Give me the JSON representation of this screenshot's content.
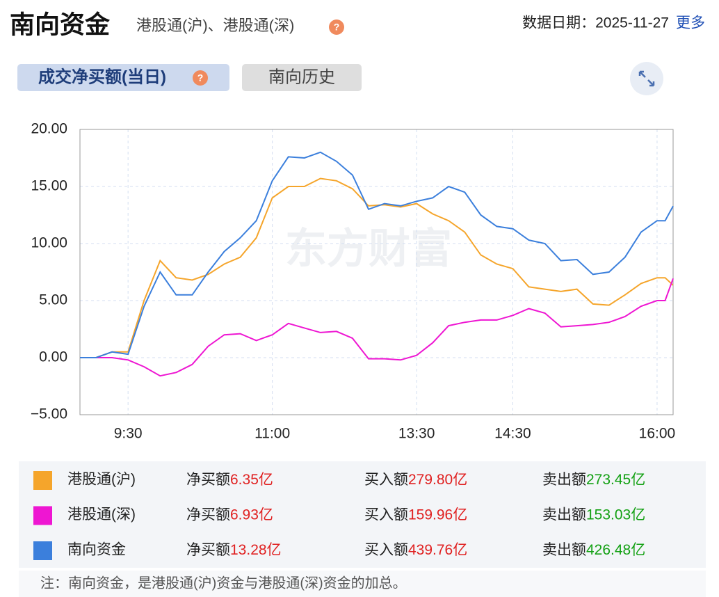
{
  "header": {
    "title": "南向资金",
    "subtitle": "港股通(沪)、港股通(深)",
    "help": "?",
    "date": "数据日期：2025-11-27",
    "more": "更多"
  },
  "tabs": [
    "成交净买额(当日)",
    "南向历史"
  ],
  "watermark": "东方财富",
  "chart_data": {
    "type": "line",
    "x": [
      0,
      10,
      20,
      30,
      40,
      50,
      60,
      70,
      80,
      90,
      100,
      110,
      120,
      130,
      140,
      150,
      160,
      170,
      180,
      190,
      200,
      210,
      220,
      230,
      240,
      250,
      260,
      270,
      280,
      290,
      300,
      310,
      320,
      330,
      340,
      350,
      360,
      365,
      370
    ],
    "xlim": [
      0,
      370
    ],
    "xticks": [
      {
        "value": 30,
        "label": "9:30"
      },
      {
        "value": 120,
        "label": "11:00"
      },
      {
        "value": 210,
        "label": "13:30"
      },
      {
        "value": 270,
        "label": "14:30"
      },
      {
        "value": 360,
        "label": "16:00"
      }
    ],
    "ylim": [
      -5,
      20
    ],
    "yticks": [
      {
        "value": 20,
        "label": "20.00"
      },
      {
        "value": 15,
        "label": "15.00"
      },
      {
        "value": 10,
        "label": "10.00"
      },
      {
        "value": 5,
        "label": "5.00"
      },
      {
        "value": 0,
        "label": "0.00"
      },
      {
        "value": -5,
        "label": "−5.00"
      }
    ],
    "grid": true,
    "series": [
      {
        "name": "港股通(沪)",
        "color": "#f5a52b",
        "values": [
          0,
          0,
          0.5,
          0.5,
          5,
          8.5,
          7,
          6.8,
          7.3,
          8.2,
          8.8,
          10.5,
          14,
          15,
          15,
          15.7,
          15.5,
          14.8,
          13.3,
          13.4,
          13.2,
          13.5,
          12.6,
          12,
          11,
          9,
          8.2,
          7.8,
          6.2,
          6,
          5.8,
          6,
          4.7,
          4.6,
          5.5,
          6.5,
          7,
          7,
          6.35
        ]
      },
      {
        "name": "港股通(深)",
        "color": "#ee16d2",
        "values": [
          0,
          0,
          0,
          -0.2,
          -0.8,
          -1.6,
          -1.3,
          -0.6,
          1,
          2,
          2.1,
          1.5,
          2,
          3,
          2.6,
          2.2,
          2.3,
          1.7,
          -0.1,
          -0.1,
          -0.2,
          0.2,
          1.3,
          2.8,
          3.1,
          3.3,
          3.3,
          3.7,
          4.3,
          3.9,
          2.7,
          2.8,
          2.9,
          3.1,
          3.6,
          4.5,
          5,
          5,
          6.93
        ]
      },
      {
        "name": "南向资金",
        "color": "#3b7fdc",
        "values": [
          0,
          0,
          0.5,
          0.3,
          4.5,
          7.5,
          5.5,
          5.5,
          7.5,
          9.3,
          10.5,
          12,
          15.5,
          17.6,
          17.5,
          18,
          17.2,
          16,
          13,
          13.5,
          13.3,
          13.7,
          14,
          15,
          14.5,
          12.5,
          11.5,
          11.3,
          10.3,
          10,
          8.5,
          8.6,
          7.3,
          7.5,
          8.8,
          11,
          12,
          12,
          13.28
        ]
      }
    ]
  },
  "summary_labels": {
    "net": "净买额",
    "buy": "买入额",
    "sell": "卖出额"
  },
  "summary": [
    {
      "net": "6.35亿",
      "buy": "279.80亿",
      "sell": "273.45亿"
    },
    {
      "net": "6.93亿",
      "buy": "159.96亿",
      "sell": "153.03亿"
    },
    {
      "net": "13.28亿",
      "buy": "439.76亿",
      "sell": "426.48亿"
    }
  ],
  "note": "注：南向资金，是港股通(沪)资金与港股通(深)资金的加总。"
}
